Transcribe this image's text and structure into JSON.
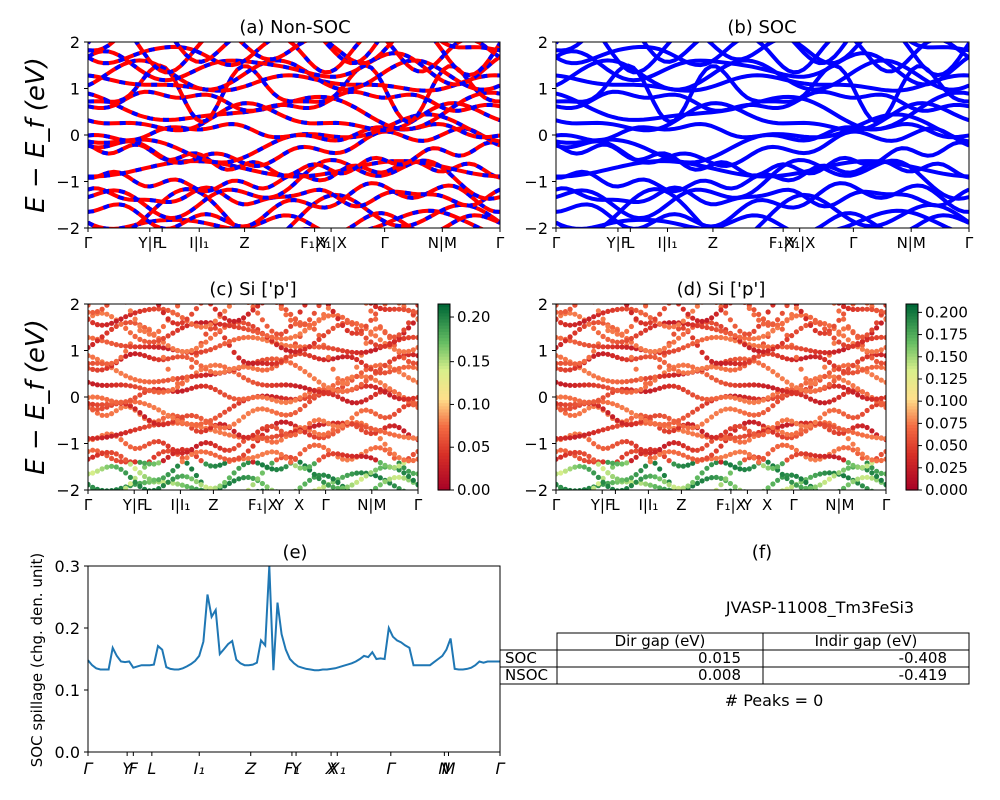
{
  "panels": {
    "a": {
      "title": "(a) Non-SOC"
    },
    "b": {
      "title": "(b) SOC"
    },
    "c": {
      "title": "(c)  Si ['p']"
    },
    "d": {
      "title": "(d) Si ['p']"
    },
    "e": {
      "title": "(e)"
    },
    "f": {
      "title": "(f)"
    }
  },
  "band_axes": {
    "ylabel": "E − E_f (eV)",
    "ylim": [
      -2,
      2
    ],
    "yticks": [
      "2",
      "1",
      "0",
      "−1",
      "−2"
    ]
  },
  "kpath_ab": [
    "Γ",
    "Y|F",
    "L",
    "I|I₁",
    "Z",
    "F₁|Y",
    "X₁|X",
    "Γ",
    "N|M",
    "Γ"
  ],
  "kpath_cd": [
    "Γ",
    "Y|F",
    "L",
    "I|I₁",
    "Z",
    "F₁|X",
    "Y",
    "X",
    "Γ",
    "N|M",
    "Γ"
  ],
  "colorbar_c": {
    "ticks": [
      "0.20",
      "0.15",
      "0.10",
      "0.05",
      "0.00"
    ],
    "range": [
      0,
      0.22
    ]
  },
  "colorbar_d": {
    "ticks": [
      "0.200",
      "0.175",
      "0.150",
      "0.125",
      "0.100",
      "0.075",
      "0.050",
      "0.025",
      "0.000"
    ],
    "range": [
      0,
      0.21
    ]
  },
  "colors": {
    "nonsoc_red": "#ff0000",
    "nonsoc_blue": "#0000ff",
    "soc_blue": "#0000ff",
    "spillage_line": "#1f77b4"
  },
  "chart_data": [
    {
      "type": "line",
      "title": "(a) Non-SOC",
      "ylabel": "E − E_f (eV)",
      "ylim": [
        -2,
        2
      ],
      "note_series": [
        "bands"
      ]
    },
    {
      "type": "line",
      "title": "(b) SOC",
      "ylim": [
        -2,
        2
      ]
    },
    {
      "type": "scatter",
      "title": "(c)  Si ['p']",
      "ylabel": "E − E_f (eV)",
      "ylim": [
        -2,
        2
      ]
    },
    {
      "type": "scatter",
      "title": "(d) Si ['p']",
      "ylim": [
        -2,
        2
      ]
    },
    {
      "type": "line",
      "title": "(e)",
      "ylabel": "SOC spillage (chg. den. unit)",
      "ylim": [
        0,
        0.3
      ],
      "yticks": [
        "0.0",
        "0.1",
        "0.2",
        "0.3"
      ],
      "xticks": [
        "Γ",
        "Y",
        "F",
        "L",
        "I₁",
        "Z",
        "F₁",
        "Y",
        "X",
        "X₁",
        "Γ",
        "N",
        "M",
        "Γ"
      ],
      "x": [
        0,
        1,
        2,
        3,
        4,
        5,
        6,
        7,
        8,
        9,
        10,
        11,
        12,
        13,
        14,
        15,
        16,
        17,
        18,
        19,
        20,
        21,
        22,
        23,
        24,
        25,
        26,
        27,
        28,
        29,
        30,
        31,
        32,
        33,
        34,
        35,
        36,
        37,
        38,
        39,
        40,
        41,
        42,
        43,
        44,
        45,
        46,
        47,
        48,
        49,
        50,
        51,
        52,
        53,
        54,
        55,
        56,
        57,
        58,
        59,
        60,
        61,
        62,
        63,
        64,
        65,
        66,
        67,
        68,
        69,
        70,
        71,
        72,
        73,
        74,
        75,
        76,
        77,
        78,
        79,
        80,
        81,
        82,
        83,
        84,
        85,
        86,
        87,
        88,
        89,
        90,
        91,
        92,
        93,
        94,
        95,
        96,
        97,
        98,
        99,
        100
      ],
      "values": [
        0.148,
        0.14,
        0.135,
        0.133,
        0.133,
        0.133,
        0.168,
        0.155,
        0.146,
        0.145,
        0.146,
        0.136,
        0.138,
        0.14,
        0.14,
        0.14,
        0.141,
        0.171,
        0.165,
        0.137,
        0.134,
        0.133,
        0.133,
        0.135,
        0.138,
        0.142,
        0.147,
        0.155,
        0.178,
        0.254,
        0.218,
        0.229,
        0.158,
        0.166,
        0.174,
        0.179,
        0.149,
        0.143,
        0.14,
        0.14,
        0.141,
        0.144,
        0.18,
        0.172,
        0.3,
        0.132,
        0.241,
        0.19,
        0.165,
        0.15,
        0.143,
        0.138,
        0.136,
        0.134,
        0.133,
        0.132,
        0.132,
        0.133,
        0.133,
        0.134,
        0.135,
        0.137,
        0.139,
        0.141,
        0.143,
        0.146,
        0.15,
        0.155,
        0.153,
        0.161,
        0.15,
        0.151,
        0.15,
        0.2,
        0.186,
        0.18,
        0.177,
        0.172,
        0.168,
        0.14,
        0.14,
        0.14,
        0.14,
        0.14,
        0.145,
        0.15,
        0.155,
        0.165,
        0.183,
        0.134,
        0.133,
        0.133,
        0.134,
        0.136,
        0.14,
        0.146,
        0.144,
        0.146,
        0.146,
        0.146,
        0.146
      ]
    }
  ],
  "table": {
    "material": "JVASP-11008_Tm3FeSi3",
    "headers": [
      "",
      "Dir gap (eV)",
      "Indir gap (eV)"
    ],
    "rows": [
      [
        "SOC",
        "0.015",
        "-0.408"
      ],
      [
        "NSOC",
        "0.008",
        "-0.419"
      ]
    ],
    "peaks": "# Peaks = 0"
  }
}
